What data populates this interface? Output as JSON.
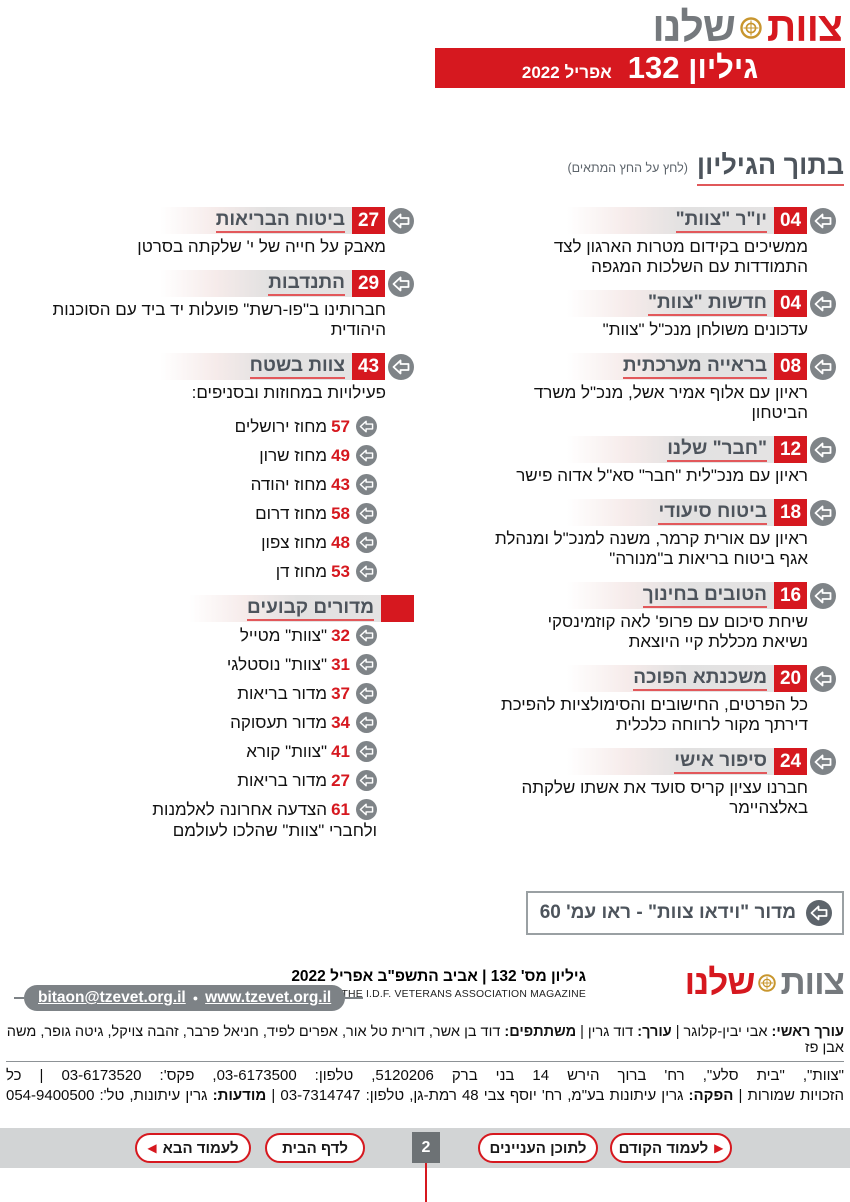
{
  "colors": {
    "red": "#d6181f",
    "gray": "#7d8286",
    "title_gray": "#4d545c",
    "gold": "#c8962e",
    "nav_band": "#d2d4d5"
  },
  "header": {
    "logo_word1": "צוות",
    "logo_word2": "שלנו",
    "banner_issue": "גיליון 132",
    "banner_date": "אפריל 2022"
  },
  "toc": {
    "title": "בתוך הגיליון",
    "hint": "(לחץ על החץ המתאים)",
    "right_column": [
      {
        "page": "04",
        "title": "יו\"ר \"צוות\"",
        "desc": "ממשיכים בקידום מטרות הארגון לצד\nהתמודדות עם השלכות המגפה"
      },
      {
        "page": "04",
        "title": "חדשות \"צוות\"",
        "desc": "עדכונים משולחן מנכ\"ל \"צוות\""
      },
      {
        "page": "08",
        "title": "בראייה מערכתית",
        "desc": "ראיון עם אלוף אמיר אשל, מנכ\"ל משרד\nהביטחון"
      },
      {
        "page": "12",
        "title": "\"חבר\" שלנו",
        "desc": "ראיון עם מנכ\"לית \"חבר\" סא\"ל אדוה פישר"
      },
      {
        "page": "18",
        "title": "ביטוח סיעודי",
        "desc": "ראיון עם אורית קרמר, משנה למנכ\"ל ומנהלת\nאגף ביטוח בריאות ב\"מנורה\""
      },
      {
        "page": "16",
        "title": "הטובים בחינוך",
        "desc": "שיחת סיכום עם פרופ' לאה קוזמינסקי\nנשיאת מכללת קיי היוצאת"
      },
      {
        "page": "20",
        "title": "משכנתא הפוכה",
        "desc": "כל הפרטים, החישובים והסימולציות להפיכת\nדירתך מקור לרווחה כלכלית"
      },
      {
        "page": "24",
        "title": "סיפור אישי",
        "desc": "חברנו עציון קריס סועד את אשתו שלקתה\nבאלצהיימר"
      }
    ],
    "left_column": [
      {
        "page": "27",
        "title": "ביטוח הבריאות",
        "desc": "מאבק על חייה של י' שלקתה בסרטן"
      },
      {
        "page": "29",
        "title": "התנדבות",
        "desc": "חברותינו ב\"פו-רשת\" פועלות יד ביד עם הסוכנות\nהיהודית"
      },
      {
        "page": "43",
        "title": "צוות בשטח",
        "desc": "פעילויות במחוזות ובסניפים:",
        "subs": [
          {
            "page": "57",
            "label": "מחוז ירושלים"
          },
          {
            "page": "49",
            "label": "מחוז שרון"
          },
          {
            "page": "43",
            "label": "מחוז יהודה"
          },
          {
            "page": "58",
            "label": "מחוז דרום"
          },
          {
            "page": "48",
            "label": "מחוז צפון"
          },
          {
            "page": "53",
            "label": "מחוז דן"
          }
        ]
      },
      {
        "page": "",
        "title": "מדורים קבועים",
        "subs": [
          {
            "page": "32",
            "label": "\"צוות\" מטייל"
          },
          {
            "page": "31",
            "label": "\"צוות\" נוסטלגי"
          },
          {
            "page": "37",
            "label": "מדור בריאות"
          },
          {
            "page": "34",
            "label": "מדור תעסוקה"
          },
          {
            "page": "41",
            "label": "\"צוות\" קורא"
          },
          {
            "page": "27",
            "label": "מדור בריאות"
          },
          {
            "page": "61",
            "label": "הצדעה אחרונה לאלמנות\nולחברי \"צוות\" שהלכו לעולמם"
          }
        ]
      }
    ],
    "video_note": "מדור \"וידאו צוות\" - ראו עמ' 60"
  },
  "footer": {
    "logo_word1": "צוות",
    "logo_word2": "שלנו",
    "issue_line": "גיליון מס' 132 | אביב התשפ\"ב אפריל 2022",
    "issn_line": "ISSN 0792-3155 \"TZEVET\" THE I.D.F. VETERANS ASSOCIATION MAGAZINE",
    "email": "bitaon@tzevet.org.il",
    "separator": "●",
    "website": "www.tzevet.org.il",
    "credits_line1": [
      {
        "t": "עורך ראשי:",
        "b": true
      },
      {
        "t": " אבי יבין-קלוגר | "
      },
      {
        "t": "עורך:",
        "b": true
      },
      {
        "t": " דוד גרין | "
      },
      {
        "t": "משתתפים:",
        "b": true
      },
      {
        "t": " דוד בן אשר, דורית טל אור, אפרים לפיד, חניאל פרבר, זהבה צויקל, גיטה גופר, משה אבן פז"
      }
    ],
    "credits_line2": "\"צוות\", \"בית סלע\", רח' ברוך הירש 14 בני ברק 5120206, טלפון: 03-6173500, פקס': 03-6173520 | כל",
    "credits_line3": [
      {
        "t": "הזכויות שמורות | "
      },
      {
        "t": "הפקה:",
        "b": true
      },
      {
        "t": " גרין עיתונות בע\"מ, רח' יוסף צבי 48 רמת-גן, טלפון: 03-7314747 | "
      },
      {
        "t": "מודעות:",
        "b": true
      },
      {
        "t": " גרין עיתונות, טל': 054-9400500"
      }
    ]
  },
  "nav": {
    "prev": "לעמוד הקודם",
    "contents": "לתוכן העניינים",
    "page": "2",
    "home": "לדף הבית",
    "next": "לעמוד הבא"
  }
}
